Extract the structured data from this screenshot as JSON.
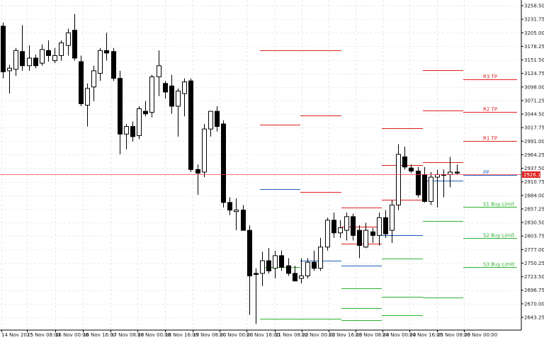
{
  "chart_data": {
    "type": "candlestick",
    "y_axis_labels": [
      "3258.50",
      "3231.75",
      "3205.00",
      "3178.25",
      "3151.50",
      "3124.75",
      "3098.00",
      "3071.25",
      "3044.50",
      "3017.75",
      "2991.00",
      "2964.25",
      "2937.50",
      "2910.75",
      "2884.00",
      "2857.25",
      "2830.50",
      "2803.75",
      "2777.00",
      "2750.25",
      "2723.50",
      "2696.75",
      "2670.00",
      "2643.25"
    ],
    "x_axis_labels": [
      "14 Nov 2025",
      "15 Nov 08:00",
      "16 Nov 00:00",
      "16 Nov 16:00",
      "17 Nov 08:00",
      "18 Nov 00:00",
      "18 Nov 16:00",
      "19 Nov 08:00",
      "20 Nov 00:00",
      "20 Nov 16:00",
      "21 Nov 08:00",
      "22 Nov 00:00",
      "22 Nov 16:00",
      "23 Nov 08:00",
      "24 Nov 00:00",
      "24 Nov 16:00",
      "25 Nov 08:00",
      "26 Nov 00:00"
    ],
    "ylim": [
      2630,
      3266
    ],
    "current_price": 2926.13,
    "current_price_label": "2926.13",
    "candles": [
      {
        "o": 3218,
        "h": 3225,
        "l": 3115,
        "c": 3128
      },
      {
        "o": 3130,
        "h": 3142,
        "l": 3085,
        "c": 3135
      },
      {
        "o": 3133,
        "h": 3175,
        "l": 3120,
        "c": 3170
      },
      {
        "o": 3168,
        "h": 3220,
        "l": 3130,
        "c": 3140
      },
      {
        "o": 3140,
        "h": 3180,
        "l": 3130,
        "c": 3155
      },
      {
        "o": 3155,
        "h": 3162,
        "l": 3135,
        "c": 3140
      },
      {
        "o": 3145,
        "h": 3182,
        "l": 3140,
        "c": 3172
      },
      {
        "o": 3170,
        "h": 3190,
        "l": 3148,
        "c": 3160
      },
      {
        "o": 3150,
        "h": 3175,
        "l": 3145,
        "c": 3160
      },
      {
        "o": 3160,
        "h": 3190,
        "l": 3150,
        "c": 3185
      },
      {
        "o": 3180,
        "h": 3213,
        "l": 3160,
        "c": 3205
      },
      {
        "o": 3210,
        "h": 3242,
        "l": 3150,
        "c": 3155
      },
      {
        "o": 3148,
        "h": 3160,
        "l": 3060,
        "c": 3065
      },
      {
        "o": 3062,
        "h": 3105,
        "l": 3020,
        "c": 3095
      },
      {
        "o": 3098,
        "h": 3140,
        "l": 3070,
        "c": 3130
      },
      {
        "o": 3125,
        "h": 3175,
        "l": 3110,
        "c": 3170
      },
      {
        "o": 3170,
        "h": 3205,
        "l": 3150,
        "c": 3165
      },
      {
        "o": 3168,
        "h": 3175,
        "l": 3110,
        "c": 3115
      },
      {
        "o": 3115,
        "h": 3130,
        "l": 2965,
        "c": 3005
      },
      {
        "o": 3005,
        "h": 3025,
        "l": 2975,
        "c": 3020
      },
      {
        "o": 3020,
        "h": 3030,
        "l": 2990,
        "c": 3000
      },
      {
        "o": 3002,
        "h": 3060,
        "l": 2995,
        "c": 3055
      },
      {
        "o": 3050,
        "h": 3070,
        "l": 3040,
        "c": 3045
      },
      {
        "o": 3048,
        "h": 3122,
        "l": 3038,
        "c": 3118
      },
      {
        "o": 3118,
        "h": 3170,
        "l": 3080,
        "c": 3140
      },
      {
        "o": 3105,
        "h": 3110,
        "l": 3075,
        "c": 3088
      },
      {
        "o": 3100,
        "h": 3122,
        "l": 3045,
        "c": 3060
      },
      {
        "o": 3060,
        "h": 3095,
        "l": 3000,
        "c": 3090
      },
      {
        "o": 3085,
        "h": 3115,
        "l": 3040,
        "c": 3108
      },
      {
        "o": 3110,
        "h": 3115,
        "l": 2930,
        "c": 2935
      },
      {
        "o": 2935,
        "h": 2945,
        "l": 2885,
        "c": 2928
      },
      {
        "o": 2930,
        "h": 3025,
        "l": 2920,
        "c": 3015
      },
      {
        "o": 3015,
        "h": 3050,
        "l": 3000,
        "c": 3050
      },
      {
        "o": 3050,
        "h": 3060,
        "l": 3010,
        "c": 3020
      },
      {
        "o": 3025,
        "h": 3032,
        "l": 2860,
        "c": 2870
      },
      {
        "o": 2870,
        "h": 2880,
        "l": 2845,
        "c": 2855
      },
      {
        "o": 2852,
        "h": 2878,
        "l": 2815,
        "c": 2855
      },
      {
        "o": 2855,
        "h": 2865,
        "l": 2815,
        "c": 2815
      },
      {
        "o": 2815,
        "h": 2825,
        "l": 2648,
        "c": 2725
      },
      {
        "o": 2730,
        "h": 2740,
        "l": 2630,
        "c": 2728
      },
      {
        "o": 2730,
        "h": 2773,
        "l": 2705,
        "c": 2755
      },
      {
        "o": 2755,
        "h": 2780,
        "l": 2730,
        "c": 2735
      },
      {
        "o": 2740,
        "h": 2775,
        "l": 2720,
        "c": 2765
      },
      {
        "o": 2765,
        "h": 2775,
        "l": 2735,
        "c": 2742
      },
      {
        "o": 2745,
        "h": 2760,
        "l": 2725,
        "c": 2730
      },
      {
        "o": 2730,
        "h": 2745,
        "l": 2715,
        "c": 2715
      },
      {
        "o": 2720,
        "h": 2760,
        "l": 2710,
        "c": 2725
      },
      {
        "o": 2725,
        "h": 2760,
        "l": 2720,
        "c": 2752
      },
      {
        "o": 2752,
        "h": 2775,
        "l": 2735,
        "c": 2740
      },
      {
        "o": 2740,
        "h": 2800,
        "l": 2735,
        "c": 2782
      },
      {
        "o": 2782,
        "h": 2840,
        "l": 2775,
        "c": 2835
      },
      {
        "o": 2835,
        "h": 2850,
        "l": 2800,
        "c": 2810
      },
      {
        "o": 2810,
        "h": 2835,
        "l": 2800,
        "c": 2820
      },
      {
        "o": 2815,
        "h": 2850,
        "l": 2795,
        "c": 2842
      },
      {
        "o": 2842,
        "h": 2848,
        "l": 2795,
        "c": 2805
      },
      {
        "o": 2815,
        "h": 2825,
        "l": 2760,
        "c": 2785
      },
      {
        "o": 2782,
        "h": 2830,
        "l": 2780,
        "c": 2815
      },
      {
        "o": 2812,
        "h": 2820,
        "l": 2790,
        "c": 2805
      },
      {
        "o": 2805,
        "h": 2850,
        "l": 2785,
        "c": 2840
      },
      {
        "o": 2840,
        "h": 2855,
        "l": 2800,
        "c": 2808
      },
      {
        "o": 2815,
        "h": 2875,
        "l": 2790,
        "c": 2865
      },
      {
        "o": 2865,
        "h": 2985,
        "l": 2855,
        "c": 2965
      },
      {
        "o": 2960,
        "h": 2980,
        "l": 2935,
        "c": 2940
      },
      {
        "o": 2938,
        "h": 2945,
        "l": 2928,
        "c": 2932
      },
      {
        "o": 2932,
        "h": 2940,
        "l": 2880,
        "c": 2885
      },
      {
        "o": 2925,
        "h": 2940,
        "l": 2870,
        "c": 2872
      },
      {
        "o": 2872,
        "h": 2930,
        "l": 2865,
        "c": 2920
      },
      {
        "o": 2920,
        "h": 2935,
        "l": 2860,
        "c": 2925
      },
      {
        "o": 2925,
        "h": 2935,
        "l": 2880,
        "c": 2925
      },
      {
        "o": 2925,
        "h": 2960,
        "l": 2900,
        "c": 2930
      },
      {
        "o": 2930,
        "h": 2945,
        "l": 2925,
        "c": 2928
      }
    ],
    "candle_x0": 4,
    "candle_step": 9.15,
    "levels": [
      {
        "x1": 367,
        "x2": 482,
        "y": 3170,
        "kind": "r"
      },
      {
        "x1": 367,
        "x2": 424,
        "y": 3023,
        "kind": "r"
      },
      {
        "x1": 424,
        "x2": 482,
        "y": 3042,
        "kind": "r"
      },
      {
        "x1": 367,
        "x2": 424,
        "y": 2896,
        "kind": "b"
      },
      {
        "x1": 424,
        "x2": 482,
        "y": 2891,
        "kind": "r"
      },
      {
        "x1": 367,
        "x2": 424,
        "y": 2742,
        "kind": "g"
      },
      {
        "x1": 424,
        "x2": 482,
        "y": 2755,
        "kind": "b"
      },
      {
        "x1": 367,
        "x2": 424,
        "y": 2641,
        "kind": "g"
      },
      {
        "x1": 424,
        "x2": 482,
        "y": 2641,
        "kind": "g"
      },
      {
        "x1": 482,
        "x2": 539,
        "y": 2860,
        "kind": "r"
      },
      {
        "x1": 482,
        "x2": 539,
        "y": 2822,
        "kind": "r"
      },
      {
        "x1": 482,
        "x2": 539,
        "y": 2788,
        "kind": "r"
      },
      {
        "x1": 482,
        "x2": 539,
        "y": 2745,
        "kind": "b"
      },
      {
        "x1": 482,
        "x2": 539,
        "y": 2701,
        "kind": "g"
      },
      {
        "x1": 482,
        "x2": 539,
        "y": 2661,
        "kind": "g"
      },
      {
        "x1": 482,
        "x2": 539,
        "y": 2638,
        "kind": "g"
      },
      {
        "x1": 539,
        "x2": 597,
        "y": 3016,
        "kind": "r"
      },
      {
        "x1": 539,
        "x2": 597,
        "y": 2944,
        "kind": "r"
      },
      {
        "x1": 539,
        "x2": 597,
        "y": 2875,
        "kind": "r"
      },
      {
        "x1": 539,
        "x2": 597,
        "y": 2806,
        "kind": "b"
      },
      {
        "x1": 539,
        "x2": 597,
        "y": 2760,
        "kind": "g"
      },
      {
        "x1": 539,
        "x2": 597,
        "y": 2684,
        "kind": "g"
      },
      {
        "x1": 539,
        "x2": 597,
        "y": 2648,
        "kind": "g"
      },
      {
        "x1": 597,
        "x2": 654,
        "y": 3131,
        "kind": "r"
      },
      {
        "x1": 597,
        "x2": 654,
        "y": 3051,
        "kind": "r"
      },
      {
        "x1": 597,
        "x2": 654,
        "y": 2949,
        "kind": "r"
      },
      {
        "x1": 597,
        "x2": 654,
        "y": 2913,
        "kind": "b"
      },
      {
        "x1": 597,
        "x2": 654,
        "y": 2833,
        "kind": "g"
      },
      {
        "x1": 597,
        "x2": 654,
        "y": 2682,
        "kind": "g"
      },
      {
        "x1": 654,
        "x2": 730,
        "y": 3113,
        "kind": "r",
        "label": "R3 TP"
      },
      {
        "x1": 654,
        "x2": 730,
        "y": 3049,
        "kind": "r",
        "label": "R2 TP"
      },
      {
        "x1": 654,
        "x2": 730,
        "y": 2991,
        "kind": "r",
        "label": "R1 TP"
      },
      {
        "x1": 654,
        "x2": 730,
        "y": 2924,
        "kind": "b",
        "label": "PP"
      },
      {
        "x1": 654,
        "x2": 730,
        "y": 2862,
        "kind": "g",
        "label": "S1 Buy Limit"
      },
      {
        "x1": 654,
        "x2": 730,
        "y": 2800,
        "kind": "g",
        "label": "S2 Buy Limit"
      },
      {
        "x1": 654,
        "x2": 730,
        "y": 2742,
        "kind": "g",
        "label": "S3 Buy Limit"
      }
    ],
    "colors": {
      "red": "#e02020",
      "blue": "#1f5fbf",
      "green": "#2fb22f",
      "price_line": "#ff4040",
      "tag_bg": "#e02020",
      "grid": "#d8d8d8",
      "bull_fill": "#ffffff",
      "bear_fill": "#000000"
    }
  }
}
